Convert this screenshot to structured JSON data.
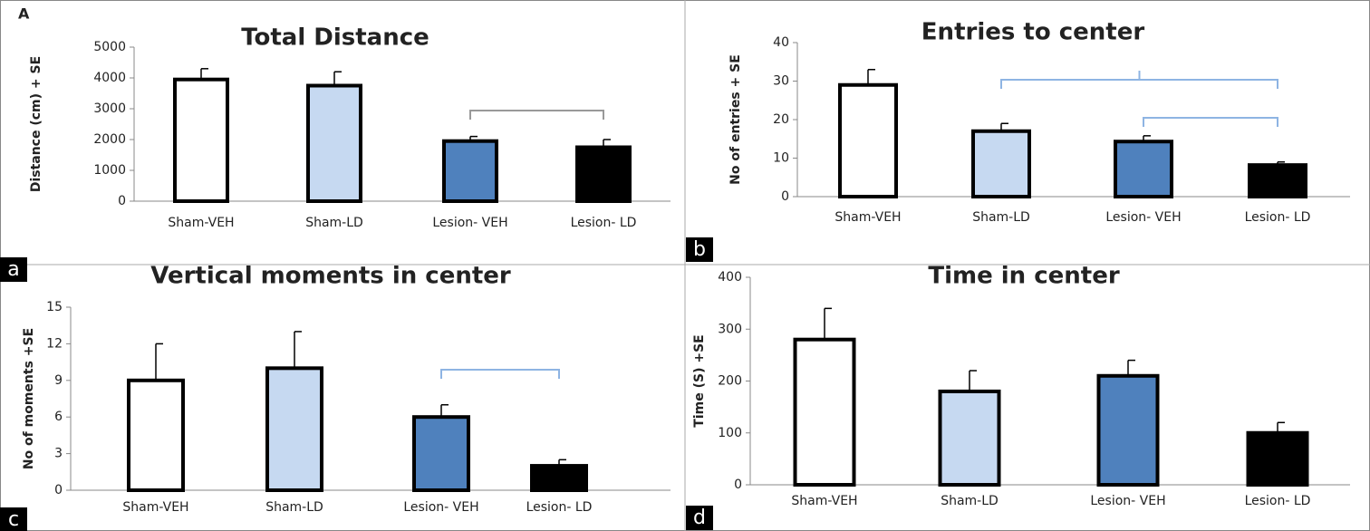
{
  "chart_data": [
    {
      "type": "bar",
      "figure_label": "A",
      "panel_label": "a",
      "title": "Total Distance",
      "y_label": "Distance (cm) + SE",
      "categories": [
        "Sham-VEH",
        "Sham-LD",
        "Lesion- VEH",
        "Lesion- LD"
      ],
      "values": [
        3950,
        3750,
        1950,
        1750
      ],
      "errors": [
        350,
        450,
        150,
        250
      ],
      "colors": [
        "#ffffff",
        "#c6d9f1",
        "#4f81bd",
        "#000000"
      ],
      "ylim": [
        0,
        5000
      ],
      "yticks": [
        0,
        1000,
        2000,
        3000,
        4000,
        5000
      ]
    },
    {
      "type": "bar",
      "panel_label": "b",
      "title": "Entries to center",
      "y_label": "No of entries + SE",
      "categories": [
        "Sham-VEH",
        "Sham-LD",
        "Lesion- VEH",
        "Lesion- LD"
      ],
      "values": [
        29,
        17,
        14.3,
        8.2
      ],
      "errors": [
        4,
        2,
        1.5,
        0.8
      ],
      "colors": [
        "#ffffff",
        "#c6d9f1",
        "#4f81bd",
        "#000000"
      ],
      "ylim": [
        0,
        40
      ],
      "yticks": [
        0,
        10,
        20,
        30,
        40
      ]
    },
    {
      "type": "bar",
      "panel_label": "c",
      "title": "Vertical moments in center",
      "y_label": "No of moments +SE",
      "categories": [
        "Sham-VEH",
        "Sham-LD",
        "Lesion- VEH",
        "Lesion- LD"
      ],
      "values": [
        9,
        10,
        6,
        2
      ],
      "errors": [
        3,
        3,
        1,
        0.5
      ],
      "colors": [
        "#ffffff",
        "#c6d9f1",
        "#4f81bd",
        "#000000"
      ],
      "ylim": [
        0,
        15
      ],
      "yticks": [
        0,
        3,
        6,
        9,
        12,
        15
      ]
    },
    {
      "type": "bar",
      "panel_label": "d",
      "title": "Time in center",
      "y_label": "Time (S) +SE",
      "categories": [
        "Sham-VEH",
        "Sham-LD",
        "Lesion- VEH",
        "Lesion- LD"
      ],
      "values": [
        280,
        180,
        210,
        100
      ],
      "errors": [
        60,
        40,
        30,
        20
      ],
      "colors": [
        "#ffffff",
        "#c6d9f1",
        "#4f81bd",
        "#000000"
      ],
      "ylim": [
        0,
        400
      ],
      "yticks": [
        0,
        100,
        200,
        300,
        400
      ]
    }
  ]
}
